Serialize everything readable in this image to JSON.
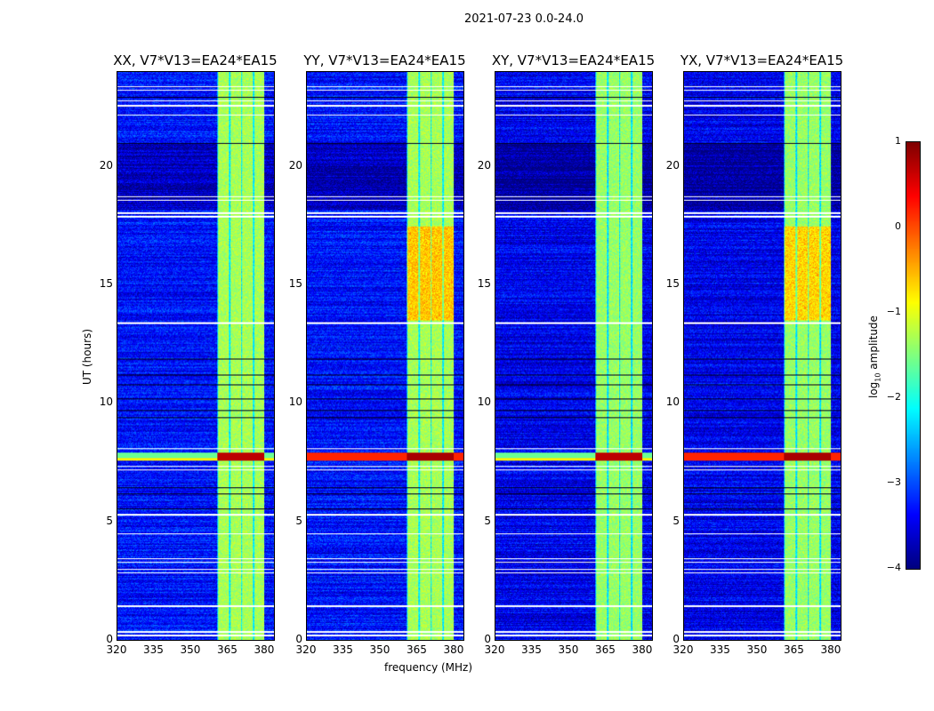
{
  "chart_data": {
    "type": "heatmap",
    "title": "2021-07-23 0.0-24.0",
    "xlabel": "frequency (MHz)",
    "ylabel": "UT (hours)",
    "xlim": [
      320,
      384
    ],
    "ylim": [
      0,
      24
    ],
    "xticks": [
      "320",
      "335",
      "350",
      "365",
      "380"
    ],
    "yticks": [
      "0",
      "5",
      "10",
      "15",
      "20"
    ],
    "panels": [
      {
        "title": "XX, V7*V13=EA24*EA15"
      },
      {
        "title": "YY, V7*V13=EA24*EA15"
      },
      {
        "title": "XY, V7*V13=EA24*EA15"
      },
      {
        "title": "YX, V7*V13=EA24*EA15"
      }
    ],
    "colorbar": {
      "label": "log10 amplitude",
      "label_base": "log",
      "label_sub": "10",
      "label_rest": " amplitude",
      "range": [
        -4,
        1
      ],
      "ticks": [
        "1",
        "0",
        "−1",
        "−2",
        "−3",
        "−4"
      ],
      "colormap": "jet"
    },
    "background_level": -3.3,
    "band_MHz": [
      360.5,
      380
    ],
    "band_level": -1.3,
    "bright_rfi_hours": [
      7.6,
      7.95
    ],
    "flagged_hours_white": [
      0.2,
      0.35,
      1.45,
      2.85,
      3.0,
      3.3,
      3.45,
      4.5,
      5.3,
      7.2,
      7.35,
      8.1,
      13.4,
      17.9,
      18.05,
      18.6,
      18.75,
      22.2,
      22.6,
      22.8,
      23.25,
      23.4
    ],
    "dark_rows_hours": [
      5.55,
      6.2,
      6.45,
      9.4,
      9.7,
      10.2,
      10.8,
      11.2,
      11.9,
      21.0,
      22.95
    ]
  }
}
